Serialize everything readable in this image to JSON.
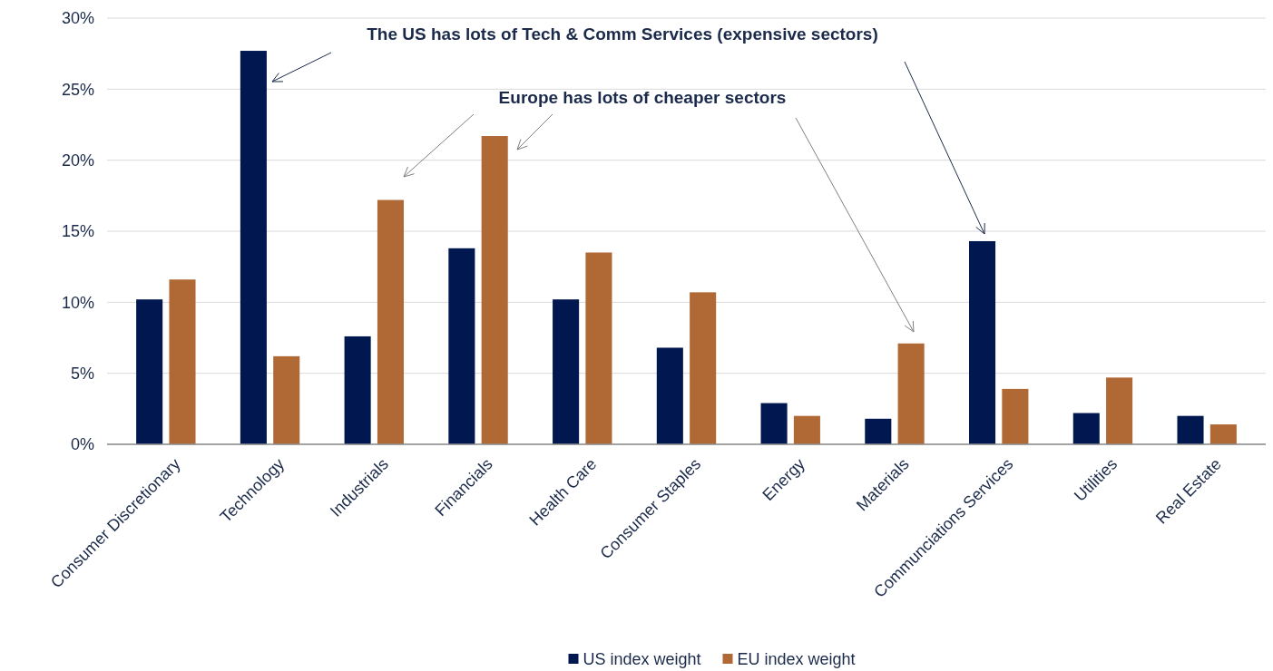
{
  "chart_data": {
    "type": "bar",
    "categories": [
      "Consumer Discretionary",
      "Technology",
      "Industrials",
      "Financials",
      "Health Care",
      "Consumer Staples",
      "Energy",
      "Materials",
      "Communciations Services",
      "Utilities",
      "Real Estate"
    ],
    "series": [
      {
        "name": "US index weight",
        "color": "#00174f",
        "values": [
          10.2,
          27.7,
          7.6,
          13.8,
          10.2,
          6.8,
          2.9,
          1.8,
          14.3,
          2.2,
          2.0
        ]
      },
      {
        "name": "EU index weight",
        "color": "#b06834",
        "values": [
          11.6,
          6.2,
          17.2,
          21.7,
          13.5,
          10.7,
          2.0,
          7.1,
          3.9,
          4.7,
          1.4
        ]
      }
    ],
    "ylim": [
      0,
      30
    ],
    "yticks": [
      {
        "value": 0,
        "label": "0%"
      },
      {
        "value": 5,
        "label": "5%"
      },
      {
        "value": 10,
        "label": "10%"
      },
      {
        "value": 15,
        "label": "15%"
      },
      {
        "value": 20,
        "label": "20%"
      },
      {
        "value": 25,
        "label": "25%"
      },
      {
        "value": 30,
        "label": "30%"
      }
    ],
    "grid": "y",
    "legend": "bottom",
    "annotations": [
      "The US has lots of Tech & Comm Services (expensive sectors)",
      "Europe has lots of cheaper sectors"
    ]
  }
}
